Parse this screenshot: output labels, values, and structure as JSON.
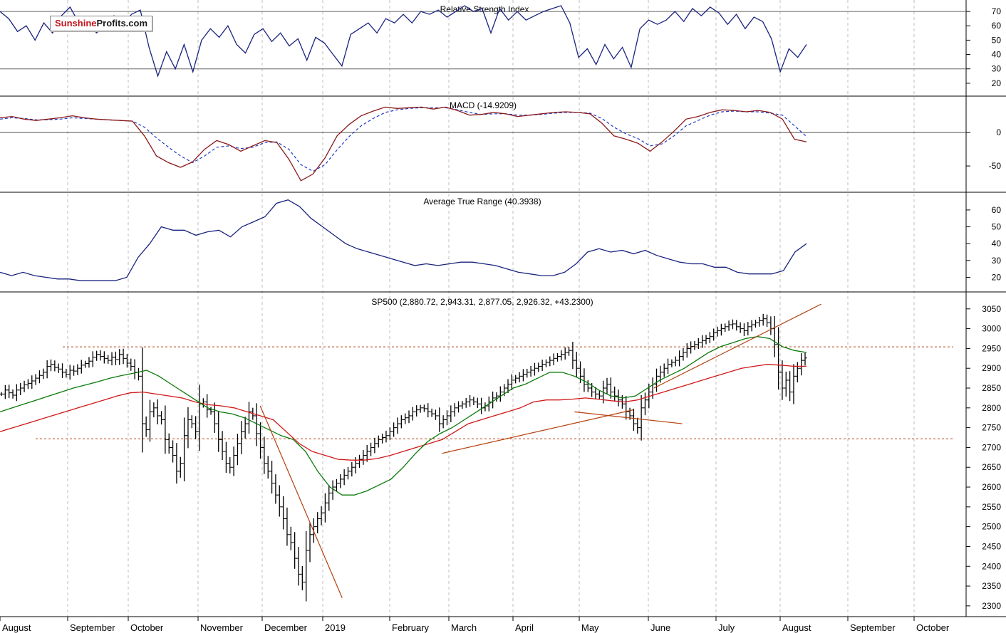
{
  "logo": {
    "part1": "Sunshine",
    "part2": "Profits.com"
  },
  "colors": {
    "indicator_line": "#1a237e",
    "macd_signal": "#1f3ac9",
    "macd_line": "#8b1a1a",
    "ma_short": "#0a7a0a",
    "ma_long": "#d01818",
    "trend_line": "#b5410e",
    "level_line": "#b5410e",
    "grid": "#bdbdbd",
    "bars": "#000000"
  },
  "x_axis": {
    "labels": [
      "August",
      "September",
      "October",
      "November",
      "December",
      "2019",
      "February",
      "March",
      "April",
      "May",
      "June",
      "July",
      "August",
      "September",
      "October"
    ]
  },
  "chart_data": [
    {
      "type": "line",
      "title": "Relative Strength Index",
      "y_ticks": [
        20,
        30,
        40,
        50,
        60,
        70
      ],
      "ylim": [
        13,
        75
      ],
      "reference_levels": [
        30,
        70
      ],
      "series": [
        {
          "values": [
            70,
            65,
            56,
            60,
            50,
            62,
            55,
            67,
            73,
            62,
            66,
            55,
            60,
            67,
            61,
            68,
            71,
            45,
            25,
            42,
            30,
            47,
            28,
            50,
            58,
            52,
            60,
            47,
            41,
            54,
            58,
            49,
            55,
            46,
            51,
            36,
            52,
            48,
            40,
            32,
            54,
            58,
            62,
            55,
            65,
            62,
            68,
            62,
            70,
            68,
            71,
            66,
            70,
            74,
            70,
            72,
            55,
            72,
            64,
            70,
            64,
            67,
            70,
            72,
            74,
            62,
            38,
            44,
            33,
            47,
            37,
            45,
            31,
            58,
            64,
            61,
            64,
            70,
            63,
            72,
            67,
            73,
            69,
            61,
            68,
            58,
            66,
            63,
            51,
            28,
            44,
            38,
            47
          ]
        }
      ]
    },
    {
      "type": "line",
      "title": "MACD (-14.9209)",
      "y_ticks": [
        0,
        -50
      ],
      "ylim": [
        -85,
        48
      ],
      "series": [
        {
          "values": [
            22,
            24,
            20,
            18,
            20,
            22,
            25,
            22,
            20,
            19,
            18,
            17,
            -5,
            -35,
            -45,
            -52,
            -44,
            -25,
            -12,
            -18,
            -28,
            -20,
            -12,
            -15,
            -40,
            -72,
            -62,
            -38,
            -5,
            12,
            25,
            32,
            38,
            36,
            37,
            38,
            35,
            38,
            33,
            26,
            27,
            30,
            28,
            24,
            26,
            28,
            30,
            31,
            30,
            28,
            14,
            -5,
            -10,
            -16,
            -28,
            -14,
            2,
            20,
            24,
            30,
            34,
            33,
            31,
            33,
            30,
            20,
            -10,
            -14
          ]
        },
        {
          "values": [
            20,
            22,
            21,
            19,
            19,
            20,
            22,
            21,
            20,
            19,
            18,
            17,
            8,
            -8,
            -22,
            -35,
            -45,
            -35,
            -22,
            -20,
            -24,
            -22,
            -15,
            -14,
            -25,
            -48,
            -58,
            -48,
            -26,
            -6,
            10,
            21,
            30,
            34,
            36,
            37,
            37,
            37,
            34,
            30,
            27,
            28,
            28,
            26,
            26,
            27,
            29,
            30,
            30,
            29,
            21,
            8,
            -2,
            -9,
            -20,
            -17,
            -5,
            10,
            18,
            26,
            31,
            32,
            31,
            31,
            29,
            26,
            10,
            -6
          ]
        }
      ]
    },
    {
      "type": "line",
      "title": "Average True Range (40.3938)",
      "y_ticks": [
        20,
        30,
        40,
        50,
        60
      ],
      "ylim": [
        13,
        68
      ],
      "series": [
        {
          "values": [
            23,
            21,
            23,
            21,
            20,
            19,
            19,
            18,
            18,
            18,
            18,
            20,
            32,
            40,
            50,
            48,
            48,
            45,
            47,
            48,
            44,
            50,
            53,
            56,
            64,
            66,
            62,
            55,
            50,
            45,
            40,
            37,
            35,
            33,
            31,
            29,
            27,
            28,
            27,
            28,
            29,
            29,
            28,
            27,
            25,
            23,
            22,
            21,
            21,
            23,
            28,
            35,
            37,
            35,
            36,
            34,
            36,
            33,
            31,
            29,
            28,
            28,
            26,
            26,
            23,
            22,
            22,
            22,
            24,
            35,
            40
          ]
        }
      ]
    },
    {
      "type": "bar",
      "title": "SP500 (2,880.72, 2,943.31, 2,877.05, 2,926.32, +43.2300)",
      "y_ticks": [
        2300,
        2350,
        2400,
        2450,
        2500,
        2550,
        2600,
        2650,
        2700,
        2750,
        2800,
        2850,
        2900,
        2950,
        3000,
        3050
      ],
      "ylim": [
        2280,
        3082
      ],
      "closes": [
        2835,
        2845,
        2838,
        2832,
        2845,
        2850,
        2858,
        2862,
        2868,
        2875,
        2882,
        2890,
        2905,
        2910,
        2902,
        2898,
        2890,
        2885,
        2895,
        2893,
        2900,
        2908,
        2912,
        2918,
        2928,
        2935,
        2930,
        2925,
        2920,
        2928,
        2922,
        2935,
        2925,
        2913,
        2905,
        2890,
        2880,
        2760,
        2745,
        2790,
        2800,
        2780,
        2770,
        2720,
        2700,
        2680,
        2640,
        2660,
        2730,
        2770,
        2760,
        2740,
        2810,
        2815,
        2795,
        2790,
        2760,
        2720,
        2690,
        2660,
        2650,
        2680,
        2710,
        2740,
        2760,
        2790,
        2780,
        2735,
        2700,
        2660,
        2640,
        2610,
        2580,
        2550,
        2520,
        2480,
        2460,
        2420,
        2380,
        2360,
        2440,
        2480,
        2500,
        2520,
        2535,
        2560,
        2585,
        2600,
        2610,
        2620,
        2630,
        2640,
        2650,
        2660,
        2670,
        2680,
        2690,
        2700,
        2710,
        2720,
        2725,
        2730,
        2740,
        2750,
        2760,
        2770,
        2775,
        2780,
        2790,
        2795,
        2800,
        2798,
        2790,
        2785,
        2780,
        2760,
        2770,
        2780,
        2790,
        2800,
        2805,
        2810,
        2815,
        2820,
        2815,
        2810,
        2800,
        2805,
        2815,
        2825,
        2830,
        2840,
        2850,
        2860,
        2870,
        2875,
        2880,
        2885,
        2890,
        2895,
        2900,
        2905,
        2910,
        2915,
        2920,
        2925,
        2930,
        2935,
        2940,
        2945,
        2920,
        2900,
        2880,
        2860,
        2850,
        2840,
        2835,
        2830,
        2850,
        2860,
        2840,
        2830,
        2820,
        2810,
        2790,
        2780,
        2760,
        2750,
        2800,
        2820,
        2840,
        2860,
        2880,
        2890,
        2900,
        2910,
        2915,
        2920,
        2930,
        2940,
        2950,
        2955,
        2960,
        2965,
        2970,
        2975,
        2980,
        2990,
        2995,
        3000,
        3005,
        3010,
        3012,
        3005,
        3000,
        2995,
        3005,
        3010,
        3015,
        3020,
        3025,
        3015,
        3000,
        2960,
        2890,
        2850,
        2870,
        2840,
        2880,
        2900,
        2920,
        2926
      ],
      "ma_short": [
        2790,
        2800,
        2810,
        2820,
        2830,
        2840,
        2850,
        2858,
        2866,
        2875,
        2882,
        2888,
        2895,
        2880,
        2860,
        2840,
        2820,
        2800,
        2790,
        2785,
        2775,
        2760,
        2745,
        2730,
        2720,
        2690,
        2640,
        2600,
        2580,
        2580,
        2590,
        2605,
        2620,
        2650,
        2685,
        2715,
        2735,
        2750,
        2770,
        2790,
        2810,
        2830,
        2850,
        2860,
        2875,
        2890,
        2890,
        2880,
        2865,
        2845,
        2830,
        2825,
        2830,
        2850,
        2870,
        2885,
        2900,
        2920,
        2940,
        2955,
        2965,
        2975,
        2980,
        2975,
        2955,
        2945,
        2940
      ],
      "ma_long": [
        2740,
        2750,
        2760,
        2770,
        2780,
        2790,
        2800,
        2810,
        2820,
        2830,
        2838,
        2840,
        2835,
        2830,
        2825,
        2815,
        2808,
        2805,
        2800,
        2790,
        2780,
        2770,
        2740,
        2710,
        2690,
        2680,
        2670,
        2668,
        2668,
        2672,
        2680,
        2690,
        2700,
        2710,
        2720,
        2740,
        2760,
        2770,
        2780,
        2790,
        2800,
        2815,
        2820,
        2820,
        2822,
        2825,
        2822,
        2818,
        2815,
        2820,
        2830,
        2840,
        2850,
        2860,
        2870,
        2880,
        2890,
        2900,
        2905,
        2910,
        2908,
        2905,
        2905
      ],
      "levels": [
        2954,
        2722
      ]
    }
  ]
}
